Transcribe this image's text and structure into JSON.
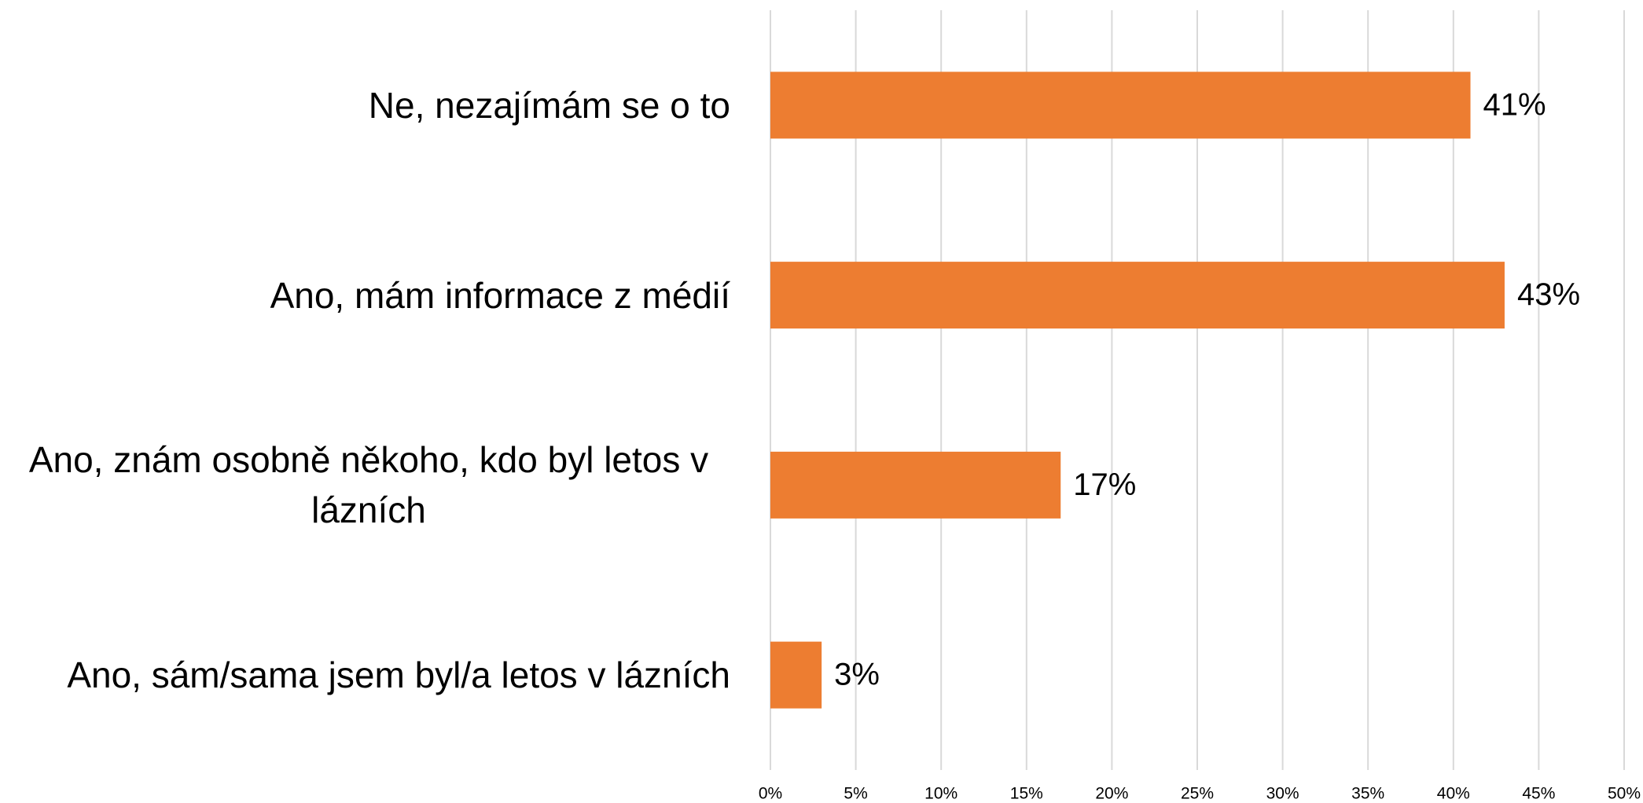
{
  "chart_data": {
    "type": "bar",
    "orientation": "horizontal",
    "categories": [
      "Ne, nezajímám se o to",
      "Ano, mám informace z médií",
      "Ano, znám osobně někoho, kdo byl letos v lázních",
      "Ano, sám/sama jsem byl/a letos v lázních"
    ],
    "values": [
      41,
      43,
      17,
      3
    ],
    "value_labels": [
      "41%",
      "43%",
      "17%",
      "3%"
    ],
    "color": "#ed7d31",
    "xlim": [
      0,
      50
    ],
    "xticks": [
      {
        "value": 0,
        "label": "0%"
      },
      {
        "value": 5,
        "label": "5%"
      },
      {
        "value": 10,
        "label": "10%"
      },
      {
        "value": 15,
        "label": "15%"
      },
      {
        "value": 20,
        "label": "20%"
      },
      {
        "value": 25,
        "label": "25%"
      },
      {
        "value": 30,
        "label": "30%"
      },
      {
        "value": 35,
        "label": "35%"
      },
      {
        "value": 40,
        "label": "40%"
      },
      {
        "value": 45,
        "label": "45%"
      },
      {
        "value": 50,
        "label": "50%"
      }
    ],
    "grid": true
  }
}
